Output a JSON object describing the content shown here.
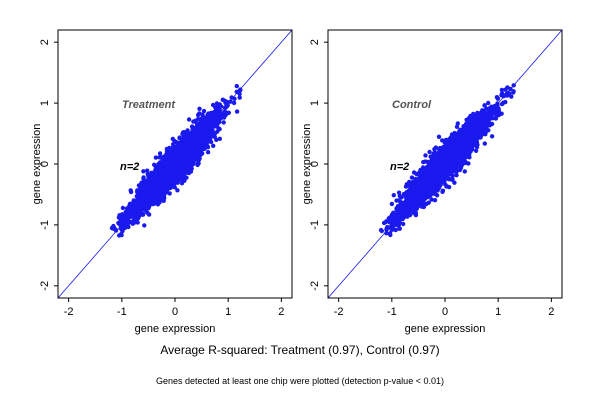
{
  "colors": {
    "points": "#1a1aee",
    "line": "#1a1aee",
    "frame": "#000000",
    "panel_label": "#555555"
  },
  "caption": "Average R-squared: Treatment (0.97), Control (0.97)",
  "note": "Genes detected at least one chip were plotted (detection p-value < 0.01)",
  "chart_data": [
    {
      "type": "scatter",
      "panel_label": "Treatment",
      "n_label": "n=2",
      "xlabel": "gene expression",
      "ylabel": "gene expression",
      "xlim": [
        -2.2,
        2.2
      ],
      "ylim": [
        -2.2,
        2.2
      ],
      "xticks": [
        -2,
        -1,
        0,
        1,
        2
      ],
      "yticks": [
        -2,
        -1,
        0,
        1,
        2
      ],
      "reference_line": "y = x",
      "point_cloud": {
        "x_range": [
          -1.1,
          1.2
        ],
        "center": [
          0,
          0
        ],
        "slope": 1,
        "spread": 0.16,
        "r_squared": 0.97
      }
    },
    {
      "type": "scatter",
      "panel_label": "Control",
      "n_label": "n=2",
      "xlabel": "gene expression",
      "ylabel": "gene expression",
      "xlim": [
        -2.2,
        2.2
      ],
      "ylim": [
        -2.2,
        2.2
      ],
      "xticks": [
        -2,
        -1,
        0,
        1,
        2
      ],
      "yticks": [
        -2,
        -1,
        0,
        1,
        2
      ],
      "reference_line": "y = x",
      "point_cloud": {
        "x_range": [
          -1.1,
          1.2
        ],
        "center": [
          0,
          0
        ],
        "slope": 1,
        "spread": 0.16,
        "r_squared": 0.97
      }
    }
  ]
}
